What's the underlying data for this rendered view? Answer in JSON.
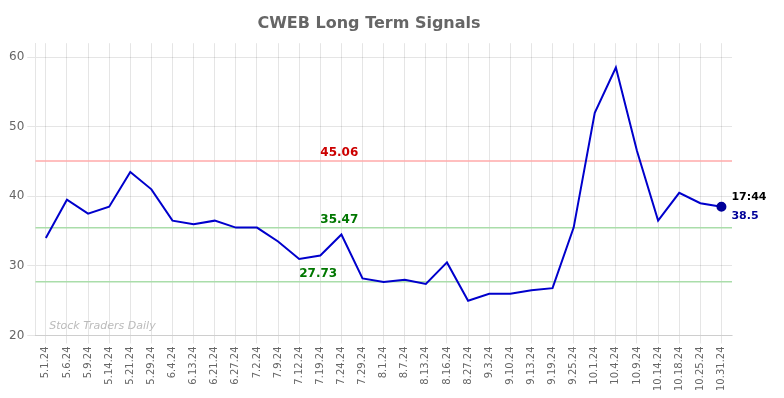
{
  "chart_data": {
    "type": "line",
    "title": "CWEB Long Term Signals",
    "categories": [
      "5.1.24",
      "5.6.24",
      "5.9.24",
      "5.14.24",
      "5.21.24",
      "5.29.24",
      "6.4.24",
      "6.13.24",
      "6.21.24",
      "6.27.24",
      "7.2.24",
      "7.9.24",
      "7.12.24",
      "7.19.24",
      "7.24.24",
      "7.29.24",
      "8.1.24",
      "8.7.24",
      "8.13.24",
      "8.16.24",
      "8.27.24",
      "9.3.24",
      "9.10.24",
      "9.13.24",
      "9.19.24",
      "9.25.24",
      "10.1.24",
      "10.4.24",
      "10.9.24",
      "10.14.24",
      "10.18.24",
      "10.25.24",
      "10.31.24"
    ],
    "values": [
      34.0,
      39.5,
      37.5,
      38.5,
      43.5,
      41.0,
      36.5,
      36.0,
      36.5,
      35.5,
      35.5,
      33.5,
      31.0,
      31.5,
      34.5,
      28.2,
      27.7,
      28.0,
      27.4,
      30.5,
      25.0,
      26.0,
      26.0,
      26.5,
      26.8,
      35.5,
      52.0,
      58.5,
      46.5,
      36.5,
      40.5,
      39.0,
      38.5
    ],
    "color": "#0000cc",
    "ylim": [
      20,
      62
    ],
    "yticks": [
      20,
      30,
      40,
      50,
      60
    ],
    "grid": true,
    "hlines": [
      {
        "value": 45.06,
        "label": "45.06",
        "color": "#ffaaaa",
        "label_color": "#cc0000"
      },
      {
        "value": 35.47,
        "label": "35.47",
        "color": "#aaddaa",
        "label_color": "#007700"
      },
      {
        "value": 27.73,
        "label": "27.73",
        "color": "#aaddaa",
        "label_color": "#007700"
      }
    ],
    "last_point": {
      "labels": [
        "17:44",
        "38.5"
      ],
      "color": "#000099"
    },
    "watermark": {
      "text": "Stock Traders Daily",
      "color": "#bbbbbb"
    }
  }
}
